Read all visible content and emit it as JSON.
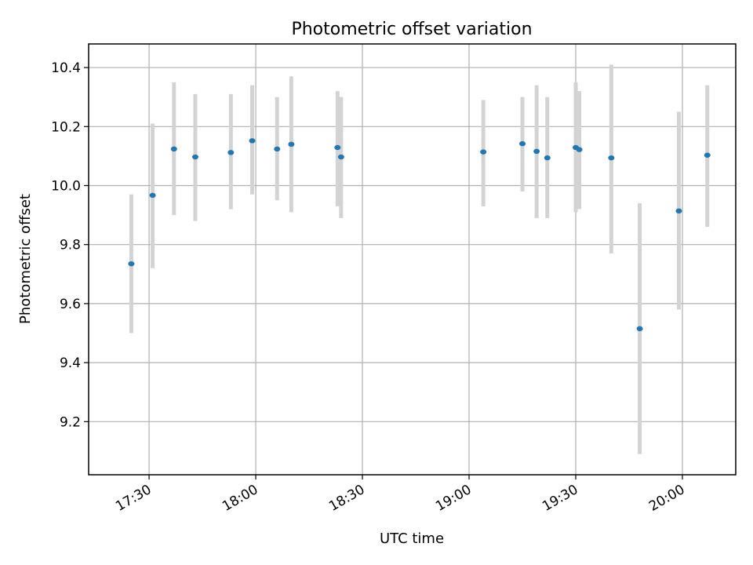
{
  "chart_data": {
    "type": "scatter",
    "title": "Photometric offset variation",
    "xlabel": "UTC time",
    "ylabel": "Photometric offset",
    "x_unit": "UTC time of day (HH:MM)",
    "xlim": [
      "17:13",
      "20:15"
    ],
    "ylim": [
      9.02,
      10.48
    ],
    "x_ticks": [
      "17:30",
      "18:00",
      "18:30",
      "19:00",
      "19:30",
      "20:00"
    ],
    "y_ticks": [
      9.2,
      9.4,
      9.6,
      9.8,
      10.0,
      10.2,
      10.4
    ],
    "y_tick_labels": [
      "9.2",
      "9.4",
      "9.6",
      "9.8",
      "10.0",
      "10.2",
      "10.4"
    ],
    "grid": true,
    "point_color": "#1f77b4",
    "errorbar_color": "#d3d3d3",
    "points": [
      {
        "x": "17:25",
        "y": 9.735,
        "ylow": 9.5,
        "yhigh": 9.97
      },
      {
        "x": "17:31",
        "y": 9.967,
        "ylow": 9.72,
        "yhigh": 10.21
      },
      {
        "x": "17:37",
        "y": 10.124,
        "ylow": 9.9,
        "yhigh": 10.35
      },
      {
        "x": "17:43",
        "y": 10.097,
        "ylow": 9.88,
        "yhigh": 10.31
      },
      {
        "x": "17:53",
        "y": 10.112,
        "ylow": 9.92,
        "yhigh": 10.31
      },
      {
        "x": "17:59",
        "y": 10.152,
        "ylow": 9.97,
        "yhigh": 10.34
      },
      {
        "x": "18:06",
        "y": 10.124,
        "ylow": 9.95,
        "yhigh": 10.3
      },
      {
        "x": "18:10",
        "y": 10.14,
        "ylow": 9.91,
        "yhigh": 10.37
      },
      {
        "x": "18:23",
        "y": 10.129,
        "ylow": 9.93,
        "yhigh": 10.32
      },
      {
        "x": "18:24",
        "y": 10.097,
        "ylow": 9.89,
        "yhigh": 10.3
      },
      {
        "x": "19:04",
        "y": 10.114,
        "ylow": 9.93,
        "yhigh": 10.29
      },
      {
        "x": "19:15",
        "y": 10.142,
        "ylow": 9.98,
        "yhigh": 10.3
      },
      {
        "x": "19:19",
        "y": 10.116,
        "ylow": 9.89,
        "yhigh": 10.34
      },
      {
        "x": "19:22",
        "y": 10.094,
        "ylow": 9.89,
        "yhigh": 10.3
      },
      {
        "x": "19:30",
        "y": 10.129,
        "ylow": 9.91,
        "yhigh": 10.35
      },
      {
        "x": "19:31",
        "y": 10.122,
        "ylow": 9.92,
        "yhigh": 10.32
      },
      {
        "x": "19:40",
        "y": 10.094,
        "ylow": 9.77,
        "yhigh": 10.41
      },
      {
        "x": "19:48",
        "y": 9.515,
        "ylow": 9.09,
        "yhigh": 9.94
      },
      {
        "x": "19:59",
        "y": 9.914,
        "ylow": 9.58,
        "yhigh": 10.25
      },
      {
        "x": "20:07",
        "y": 10.103,
        "ylow": 9.86,
        "yhigh": 10.34
      }
    ]
  }
}
